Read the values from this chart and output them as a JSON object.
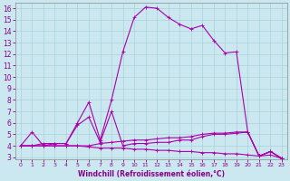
{
  "xlabel": "Windchill (Refroidissement éolien,°C)",
  "bg_color": "#cbe8f0",
  "grid_color": "#b0d8e0",
  "line_color": "#aa00aa",
  "xlim": [
    -0.5,
    23.5
  ],
  "ylim": [
    2.8,
    16.5
  ],
  "yticks": [
    3,
    4,
    5,
    6,
    7,
    8,
    9,
    10,
    11,
    12,
    13,
    14,
    15,
    16
  ],
  "xticks": [
    0,
    1,
    2,
    3,
    4,
    5,
    6,
    7,
    8,
    9,
    10,
    11,
    12,
    13,
    14,
    15,
    16,
    17,
    18,
    19,
    20,
    21,
    22,
    23
  ],
  "line1_x": [
    0,
    1,
    2,
    3,
    4,
    5,
    6,
    7,
    8,
    9,
    10,
    11,
    12,
    13,
    14,
    15,
    16,
    17,
    18,
    19,
    20,
    21,
    22,
    23
  ],
  "line1_y": [
    4.0,
    5.2,
    4.0,
    4.2,
    4.2,
    6.0,
    7.8,
    4.5,
    8.0,
    12.2,
    15.2,
    16.1,
    16.0,
    15.2,
    14.6,
    14.2,
    14.5,
    13.2,
    12.1,
    12.2,
    5.2,
    3.1,
    3.5,
    2.9
  ],
  "line2_x": [
    0,
    1,
    2,
    3,
    4,
    5,
    6,
    7,
    8,
    9,
    10,
    11,
    12,
    13,
    14,
    15,
    16,
    17,
    18,
    19,
    20,
    21,
    22,
    23
  ],
  "line2_y": [
    4.0,
    4.0,
    4.2,
    4.2,
    4.2,
    5.8,
    6.5,
    4.3,
    7.0,
    4.0,
    4.2,
    4.2,
    4.3,
    4.3,
    4.5,
    4.5,
    4.8,
    5.0,
    5.0,
    5.1,
    5.2,
    3.1,
    3.5,
    2.9
  ],
  "line3_x": [
    0,
    1,
    2,
    3,
    4,
    5,
    6,
    7,
    8,
    9,
    10,
    11,
    12,
    13,
    14,
    15,
    16,
    17,
    18,
    19,
    20,
    21,
    22,
    23
  ],
  "line3_y": [
    4.0,
    4.0,
    4.0,
    4.0,
    4.0,
    4.0,
    4.0,
    4.2,
    4.3,
    4.4,
    4.5,
    4.5,
    4.6,
    4.7,
    4.7,
    4.8,
    5.0,
    5.1,
    5.1,
    5.2,
    5.2,
    3.1,
    3.5,
    2.9
  ],
  "line4_x": [
    0,
    1,
    2,
    3,
    4,
    5,
    6,
    7,
    8,
    9,
    10,
    11,
    12,
    13,
    14,
    15,
    16,
    17,
    18,
    19,
    20,
    21,
    22,
    23
  ],
  "line4_y": [
    4.0,
    4.0,
    4.0,
    4.0,
    4.0,
    4.0,
    3.9,
    3.8,
    3.8,
    3.8,
    3.7,
    3.7,
    3.6,
    3.6,
    3.5,
    3.5,
    3.4,
    3.4,
    3.3,
    3.3,
    3.2,
    3.1,
    3.2,
    2.9
  ]
}
